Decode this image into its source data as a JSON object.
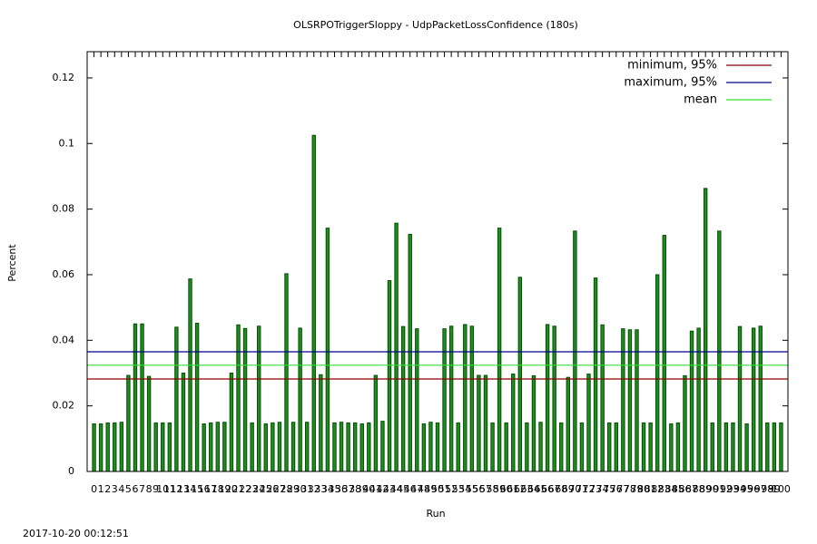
{
  "chart_data": {
    "type": "bar",
    "title": "OLSRPOTriggerSloppy - UdpPacketLossConfidence (180s)",
    "x_label": "Run",
    "y_label": "Percent",
    "timestamp": "2017-10-20 00:12:51",
    "categories": [
      "0",
      "1",
      "2",
      "3",
      "4",
      "5",
      "6",
      "7",
      "8",
      "9",
      "10",
      "11",
      "12",
      "13",
      "14",
      "15",
      "16",
      "17",
      "18",
      "19",
      "20",
      "21",
      "22",
      "23",
      "24",
      "25",
      "26",
      "27",
      "28",
      "29",
      "30",
      "31",
      "32",
      "33",
      "34",
      "35",
      "36",
      "37",
      "38",
      "39",
      "40",
      "41",
      "42",
      "43",
      "44",
      "45",
      "46",
      "47",
      "48",
      "49",
      "50",
      "51",
      "52",
      "53",
      "54",
      "55",
      "56",
      "57",
      "58",
      "59",
      "60",
      "61",
      "62",
      "63",
      "64",
      "65",
      "66",
      "67",
      "68",
      "69",
      "70",
      "71",
      "72",
      "73",
      "74",
      "75",
      "76",
      "77",
      "78",
      "79",
      "80",
      "81",
      "82",
      "83",
      "84",
      "85",
      "86",
      "87",
      "88",
      "89",
      "90",
      "91",
      "92",
      "93",
      "94",
      "95",
      "96",
      "97",
      "98",
      "99",
      "100"
    ],
    "values": [
      0.0145,
      0.0145,
      0.0148,
      0.0148,
      0.015,
      0.0293,
      0.045,
      0.045,
      0.029,
      0.0148,
      0.0148,
      0.0148,
      0.044,
      0.03,
      0.0587,
      0.0452,
      0.0145,
      0.0148,
      0.015,
      0.015,
      0.03,
      0.0447,
      0.0436,
      0.0148,
      0.0443,
      0.0145,
      0.0148,
      0.015,
      0.0603,
      0.015,
      0.0437,
      0.015,
      0.1025,
      0.0295,
      0.0742,
      0.0148,
      0.015,
      0.0148,
      0.0148,
      0.0145,
      0.0148,
      0.0293,
      0.0153,
      0.0582,
      0.0757,
      0.0442,
      0.0723,
      0.0435,
      0.0145,
      0.015,
      0.0148,
      0.0435,
      0.0443,
      0.0148,
      0.0448,
      0.0443,
      0.0293,
      0.0293,
      0.0148,
      0.0742,
      0.0148,
      0.0297,
      0.0592,
      0.0148,
      0.0292,
      0.015,
      0.0448,
      0.0443,
      0.0148,
      0.0287,
      0.0733,
      0.0148,
      0.0297,
      0.059,
      0.0447,
      0.0148,
      0.0148,
      0.0435,
      0.0432,
      0.0432,
      0.0148,
      0.0148,
      0.06,
      0.072,
      0.0145,
      0.0148,
      0.0292,
      0.0428,
      0.0437,
      0.0863,
      0.0148,
      0.0733,
      0.0148,
      0.0148,
      0.0442,
      0.0145,
      0.0437,
      0.0443,
      0.0148,
      0.0148,
      0.0148
    ],
    "color": "#228b22",
    "lines": [
      {
        "name": "minimum, 95%",
        "color": "#8b0000",
        "value": 0.0282
      },
      {
        "name": "maximum, 95%",
        "color": "#00008b",
        "value": 0.0365
      },
      {
        "name": "mean",
        "color": "#33dd33",
        "value": 0.0324
      }
    ],
    "xlim": [
      -1,
      101
    ],
    "ylim": [
      0,
      0.128
    ],
    "yticks": [
      0,
      0.02,
      0.04,
      0.06,
      0.08,
      0.1,
      0.12
    ],
    "legend": "top-right"
  }
}
